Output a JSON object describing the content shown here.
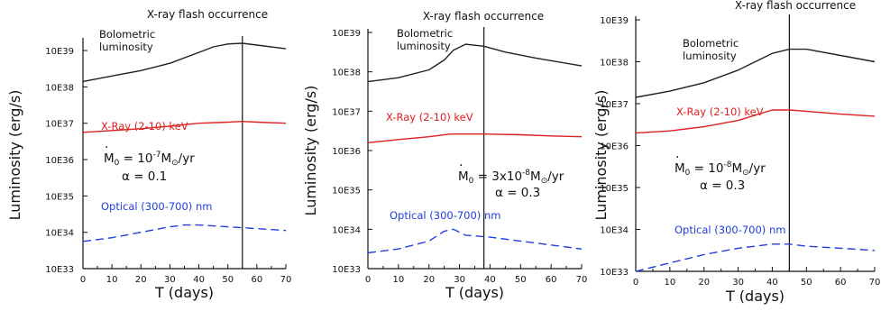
{
  "chart_data": [
    {
      "type": "line",
      "xlabel": "T (days)",
      "ylabel": "Luminosity (erg/s)",
      "xlim": [
        0,
        70
      ],
      "xticks": [
        "0",
        "10",
        "20",
        "30",
        "40",
        "50",
        "60",
        "70"
      ],
      "ylim_log10": [
        33,
        39.25
      ],
      "yticks": [
        "10E33",
        "10E34",
        "10E35",
        "10E36",
        "10E37",
        "10E38",
        "10E39"
      ],
      "flash_label": "X-ray flash occurrence",
      "flash_day": 55,
      "params": {
        "mdot_prefix": "M",
        "mdot_sub": "0",
        "mdot_mid": " = 10",
        "mdot_exp": "-7",
        "mdot_unit": "M",
        "mdot_unit_sub": "⊙",
        "mdot_tail": "/yr",
        "alpha": "α = 0.1"
      },
      "series": [
        {
          "name": "Bolometric luminosity",
          "name_lines": [
            "Bolometric",
            "luminosity"
          ],
          "color": "#222222",
          "dash": false,
          "x": [
            0,
            10,
            20,
            30,
            40,
            45,
            50,
            55,
            60,
            70
          ],
          "log10_y": [
            38.15,
            38.3,
            38.45,
            38.65,
            38.95,
            39.1,
            39.18,
            39.2,
            39.15,
            39.05
          ]
        },
        {
          "name": "X-Ray (2-10) keV",
          "color": "#e02020",
          "dash": false,
          "x": [
            0,
            10,
            20,
            30,
            40,
            50,
            55,
            60,
            70
          ],
          "log10_y": [
            36.75,
            36.8,
            36.85,
            36.92,
            37.0,
            37.03,
            37.05,
            37.03,
            37.0
          ]
        },
        {
          "name": "Optical (300-700) nm",
          "color": "#2040e0",
          "dash": true,
          "x": [
            0,
            10,
            20,
            30,
            35,
            40,
            50,
            60,
            70
          ],
          "log10_y": [
            33.75,
            33.85,
            34.0,
            34.15,
            34.2,
            34.2,
            34.15,
            34.1,
            34.05
          ]
        }
      ]
    },
    {
      "type": "line",
      "xlabel": "T (days)",
      "ylabel": "Luminosity (erg/s)",
      "xlim": [
        0,
        70
      ],
      "xticks": [
        "0",
        "10",
        "20",
        "30",
        "40",
        "50",
        "60",
        "70"
      ],
      "ylim_log10": [
        33,
        39
      ],
      "yticks": [
        "10E33",
        "10E34",
        "10E35",
        "10E36",
        "10E37",
        "10E38",
        "10E39"
      ],
      "flash_label": "X-ray flash occurrence",
      "flash_day": 38,
      "params": {
        "mdot_prefix": "M",
        "mdot_sub": "0",
        "mdot_mid": " = 3x10",
        "mdot_exp": "-8",
        "mdot_unit": "M",
        "mdot_unit_sub": "⊙",
        "mdot_tail": "/yr",
        "alpha": "α = 0.3"
      },
      "series": [
        {
          "name": "Bolometric luminosity",
          "name_lines": [
            "Bolometric",
            "luminosity"
          ],
          "color": "#222222",
          "dash": false,
          "x": [
            0,
            10,
            20,
            25,
            28,
            32,
            38,
            45,
            55,
            70
          ],
          "log10_y": [
            37.75,
            37.85,
            38.05,
            38.3,
            38.55,
            38.7,
            38.65,
            38.5,
            38.35,
            38.15
          ]
        },
        {
          "name": "X-Ray (2-10) keV",
          "color": "#e02020",
          "dash": false,
          "x": [
            0,
            10,
            20,
            27,
            38,
            50,
            60,
            70
          ],
          "log10_y": [
            36.2,
            36.28,
            36.35,
            36.42,
            36.42,
            36.4,
            36.37,
            36.35
          ]
        },
        {
          "name": "Optical (300-700) nm",
          "color": "#2040e0",
          "dash": true,
          "x": [
            0,
            10,
            20,
            25,
            28,
            32,
            40,
            50,
            60,
            70
          ],
          "log10_y": [
            33.4,
            33.5,
            33.7,
            33.95,
            34.0,
            33.85,
            33.8,
            33.7,
            33.6,
            33.5
          ]
        }
      ]
    },
    {
      "type": "line",
      "xlabel": "T (days)",
      "ylabel": "Luminosity (erg/s)",
      "xlim": [
        0,
        70
      ],
      "xticks": [
        "0",
        "10",
        "20",
        "30",
        "40",
        "50",
        "60",
        "70"
      ],
      "ylim_log10": [
        33,
        39
      ],
      "yticks": [
        "10E33",
        "10E34",
        "10E35",
        "10E36",
        "10E37",
        "10E38",
        "10E39"
      ],
      "flash_label": "X-ray flash occurrence",
      "flash_day": 45,
      "params": {
        "mdot_prefix": "M",
        "mdot_sub": "0",
        "mdot_mid": " = 10",
        "mdot_exp": "-8",
        "mdot_unit": "M",
        "mdot_unit_sub": "⊙",
        "mdot_tail": "/yr",
        "alpha": "α = 0.3"
      },
      "series": [
        {
          "name": "Bolometric luminosity",
          "name_lines": [
            "Bolometric",
            "luminosity"
          ],
          "color": "#222222",
          "dash": false,
          "x": [
            0,
            10,
            20,
            30,
            40,
            45,
            50,
            60,
            70
          ],
          "log10_y": [
            37.15,
            37.3,
            37.5,
            37.8,
            38.2,
            38.3,
            38.3,
            38.15,
            38.0
          ]
        },
        {
          "name": "X-Ray (2-10) keV",
          "color": "#e02020",
          "dash": false,
          "x": [
            0,
            10,
            20,
            30,
            40,
            45,
            50,
            60,
            70
          ],
          "log10_y": [
            36.3,
            36.35,
            36.45,
            36.6,
            36.85,
            36.85,
            36.82,
            36.75,
            36.7
          ]
        },
        {
          "name": "Optical (300-700) nm",
          "color": "#2040e0",
          "dash": true,
          "x": [
            0,
            10,
            20,
            30,
            40,
            45,
            50,
            60,
            70
          ],
          "log10_y": [
            33.0,
            33.2,
            33.4,
            33.55,
            33.65,
            33.65,
            33.6,
            33.55,
            33.5
          ]
        }
      ]
    }
  ]
}
